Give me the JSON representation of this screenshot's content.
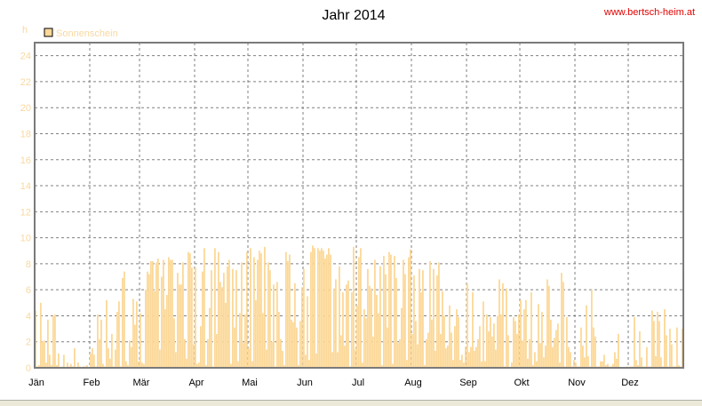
{
  "site_label": "www.bertsch-heim.at",
  "colors": {
    "bar": "#fcd898",
    "grid": "#808080",
    "frame": "#7a7a7a",
    "site": "#e00000"
  },
  "chart_data": {
    "type": "bar",
    "title": "Jahr 2014",
    "ylabel": "h",
    "ylim": [
      0,
      25
    ],
    "yticks": [
      0,
      2,
      4,
      6,
      8,
      10,
      12,
      14,
      16,
      18,
      20,
      22,
      24
    ],
    "grid": true,
    "legend_position": "top-left",
    "months": [
      "Jän",
      "Feb",
      "Mär",
      "Apr",
      "Mai",
      "Jun",
      "Jul",
      "Aug",
      "Sep",
      "Okt",
      "Nov",
      "Dez"
    ],
    "series": [
      {
        "name": "Sonnenschein",
        "color": "#fcd898",
        "values": [
          4.4,
          0.1,
          0.2,
          5,
          2,
          2.1,
          0.4,
          3.7,
          1,
          0.2,
          4,
          4.1,
          0.2,
          1.1,
          0,
          0.1,
          1,
          0,
          0.4,
          0.1,
          0.3,
          0.1,
          1.5,
          0,
          0.4,
          0.1,
          0,
          0.1,
          0.1,
          0.2,
          0,
          1.1,
          1.5,
          1,
          0.1,
          4.1,
          2.2,
          3.7,
          0.3,
          0.1,
          5.2,
          1.5,
          0.7,
          2.6,
          0.1,
          1.4,
          4.3,
          5.1,
          0.1,
          6.9,
          7.4,
          0.5,
          0.2,
          2.1,
          1.6,
          5.3,
          3.3,
          5.1,
          0.5,
          4.2,
          0.4,
          0.3,
          6,
          7.4,
          7.2,
          8.2,
          8.2,
          5.9,
          8.1,
          8.4,
          1.4,
          7,
          8.3,
          4.5,
          5.6,
          8.5,
          8.3,
          8.3,
          3.8,
          1.2,
          7.3,
          6.4,
          6.4,
          8.1,
          2.2,
          0.7,
          8.9,
          8.8,
          7.7,
          1.8,
          7.7,
          0.3,
          0.4,
          3.2,
          7.4,
          9.2,
          0.2,
          2.2,
          4.6,
          7.5,
          0.1,
          9.2,
          2.6,
          8.9,
          6.6,
          6.2,
          7.3,
          5,
          7.8,
          8.3,
          0.3,
          7.6,
          3.1,
          7.5,
          0.5,
          4.2,
          8.1,
          1.9,
          4.1,
          8.9,
          1.5,
          9.2,
          0.5,
          8.5,
          5.2,
          8.3,
          9,
          8.8,
          4.2,
          9.3,
          1.4,
          8.1,
          7.5,
          2,
          6.4,
          0.1,
          6.6,
          4.3,
          2.2,
          1.3,
          0.2,
          8.9,
          8.2,
          8.7,
          3.7,
          3.5,
          6.5,
          3.1,
          0.2,
          3.6,
          6.2,
          7.6,
          1,
          5.5,
          0.6,
          8.9,
          9.4,
          9.2,
          1.1,
          9.2,
          9,
          9.2,
          9,
          8.4,
          8.7,
          9.2,
          8.7,
          1.2,
          6.1,
          6.8,
          1.2,
          7.8,
          2.5,
          5.8,
          1.7,
          6.4,
          6.7,
          0.1,
          5.8,
          9.3,
          1.4,
          4.8,
          8.5,
          9.2,
          0.4,
          4.5,
          3.8,
          7.6,
          6.3,
          6.1,
          2.4,
          8.3,
          5.6,
          4.2,
          7.8,
          0.2,
          8.6,
          7.2,
          3.1,
          8.9,
          8.7,
          0.3,
          8.6,
          6.9,
          1.9,
          2.2,
          4.6,
          8.3,
          7.2,
          0.6,
          8.5,
          9.1,
          2.6,
          7.1,
          3.6,
          1.8,
          7.6,
          5.8,
          7.5,
          0.2,
          2.2,
          2.7,
          8.2,
          3.7,
          7.6,
          1.3,
          7.1,
          8.1,
          2.6,
          5.9,
          4,
          1.5,
          1.7,
          4.8,
          2.7,
          0.6,
          3.2,
          4.5,
          3.9,
          0.6,
          1,
          0.4,
          1.6,
          6.5,
          1.2,
          1.6,
          5.8,
          1.3,
          1.6,
          2.2,
          3.2,
          0.5,
          5.1,
          0.5,
          4.1,
          2.8,
          3.9,
          2.4,
          3.4,
          1.4,
          4,
          6.8,
          4.1,
          6.5,
          0.1,
          6.1,
          2.5,
          0,
          0.4,
          3.9,
          3.6,
          2.6,
          4.1,
          5.2,
          2.1,
          4.5,
          5.2,
          0.7,
          2.2,
          5.8,
          0.2,
          1.2,
          0.5,
          4.9,
          1.9,
          4.3,
          0.8,
          1.7,
          6.8,
          6.3,
          3.7,
          1.6,
          2.3,
          2.9,
          3.4,
          0.4,
          7.3,
          6.6,
          0.1,
          3.9,
          1.6,
          1.2,
          0.1,
          0.6,
          0.4,
          0.1,
          0.1,
          3.1,
          1.7,
          0.8,
          4.8,
          0.9,
          0.1,
          6,
          3.1,
          2.4,
          0.1,
          0.1,
          0.5,
          0.5,
          1,
          0.2,
          0.3,
          0.1,
          0.1,
          0.3,
          1.2,
          0.7,
          2.6,
          0,
          0,
          0,
          0,
          0.1,
          0,
          0.1,
          0.1,
          3.9,
          0.6,
          0.2,
          2.8,
          0.8,
          0.1,
          0.1,
          1.6,
          0.1,
          0.1,
          4.4,
          3.6,
          0.9,
          4.3,
          3.6,
          0.8,
          0.1,
          4.5,
          2.5,
          0.1,
          3,
          1.8,
          0.1,
          0.1,
          3.1,
          0.2,
          0.1,
          3
        ]
      }
    ]
  }
}
